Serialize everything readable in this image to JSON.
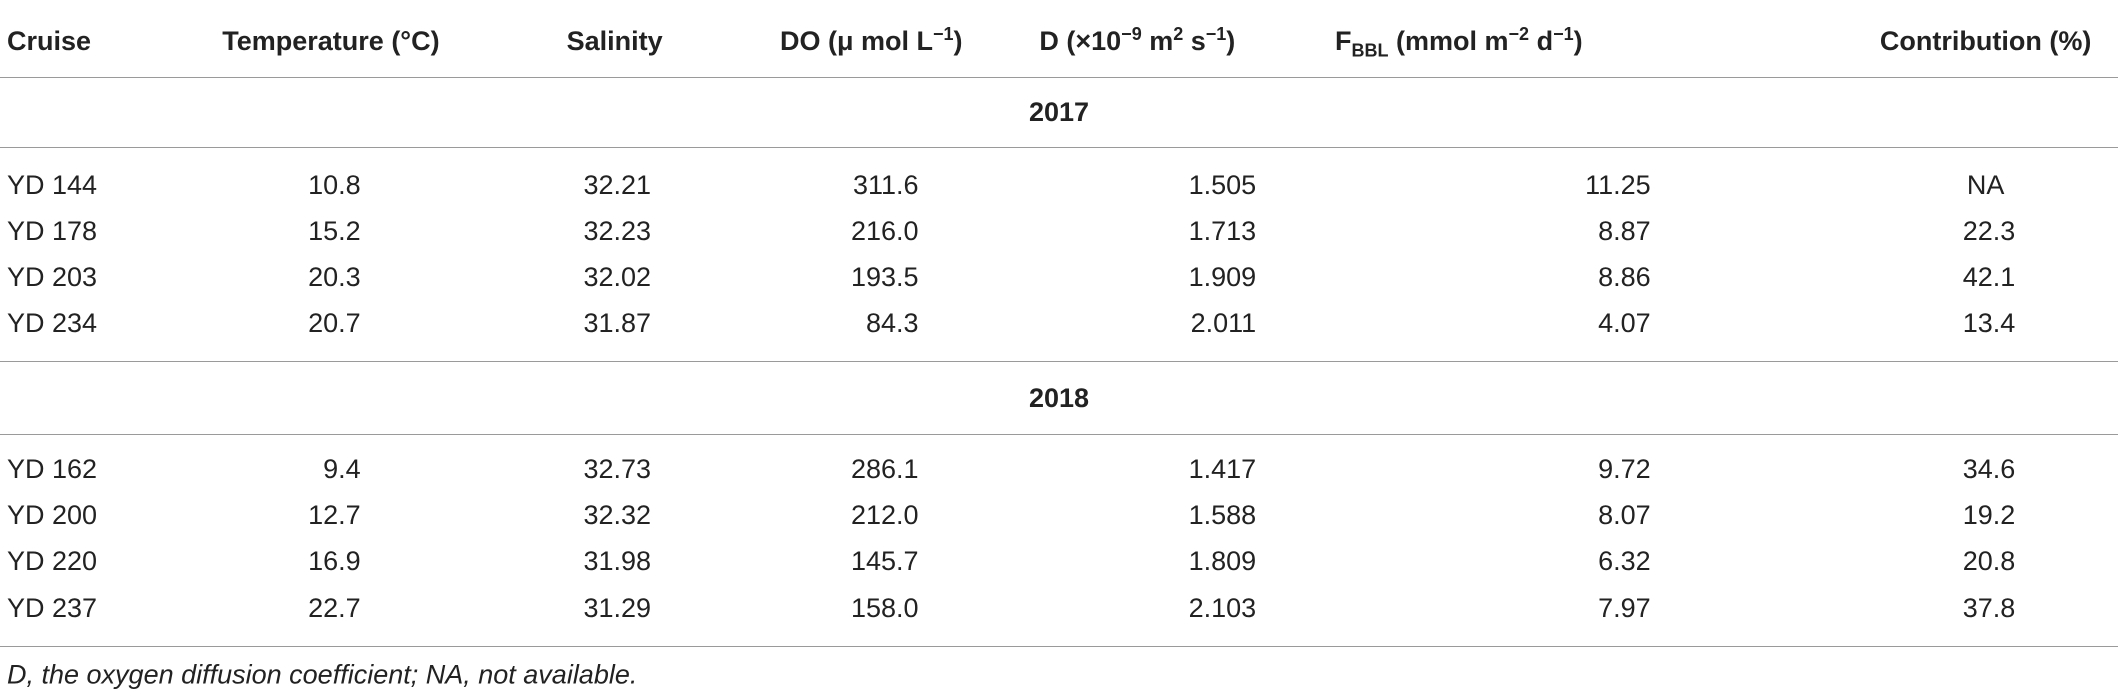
{
  "table": {
    "headers": [
      [
        "Cruise"
      ],
      [
        "Temperature (°C)"
      ],
      [
        "Salinity"
      ],
      [
        "DO (μ mol L",
        {
          "sup": "−1"
        },
        ")"
      ],
      [
        "D (×10",
        {
          "sup": "−9"
        },
        " m",
        {
          "sup": "2"
        },
        " s",
        {
          "sup": "−1"
        },
        ")"
      ],
      [
        "F",
        {
          "sub": "BBL"
        },
        " (mmol m",
        {
          "sup": "−2"
        },
        " d",
        {
          "sup": "−1"
        },
        ")"
      ],
      [
        "Contribution (%)"
      ]
    ],
    "groups": [
      {
        "label": "2017",
        "rows": [
          [
            "YD 144",
            "10.8",
            "32.21",
            "311.6",
            "1.505",
            "11.25",
            "NA"
          ],
          [
            "YD 178",
            "15.2",
            "32.23",
            "216.0",
            "1.713",
            "8.87",
            "22.3"
          ],
          [
            "YD 203",
            "20.3",
            "32.02",
            "193.5",
            "1.909",
            "8.86",
            "42.1"
          ],
          [
            "YD 234",
            "20.7",
            "31.87",
            "84.3",
            "2.011",
            "4.07",
            "13.4"
          ]
        ]
      },
      {
        "label": "2018",
        "rows": [
          [
            "YD 162",
            "9.4",
            "32.73",
            "286.1",
            "1.417",
            "9.72",
            "34.6"
          ],
          [
            "YD 200",
            "12.7",
            "32.32",
            "212.0",
            "1.588",
            "8.07",
            "19.2"
          ],
          [
            "YD 220",
            "16.9",
            "31.98",
            "145.7",
            "1.809",
            "6.32",
            "20.8"
          ],
          [
            "YD 237",
            "22.7",
            "31.29",
            "158.0",
            "2.103",
            "7.97",
            "37.8"
          ]
        ]
      }
    ],
    "footnote": "D, the oxygen diffusion coefficient; NA, not available."
  }
}
